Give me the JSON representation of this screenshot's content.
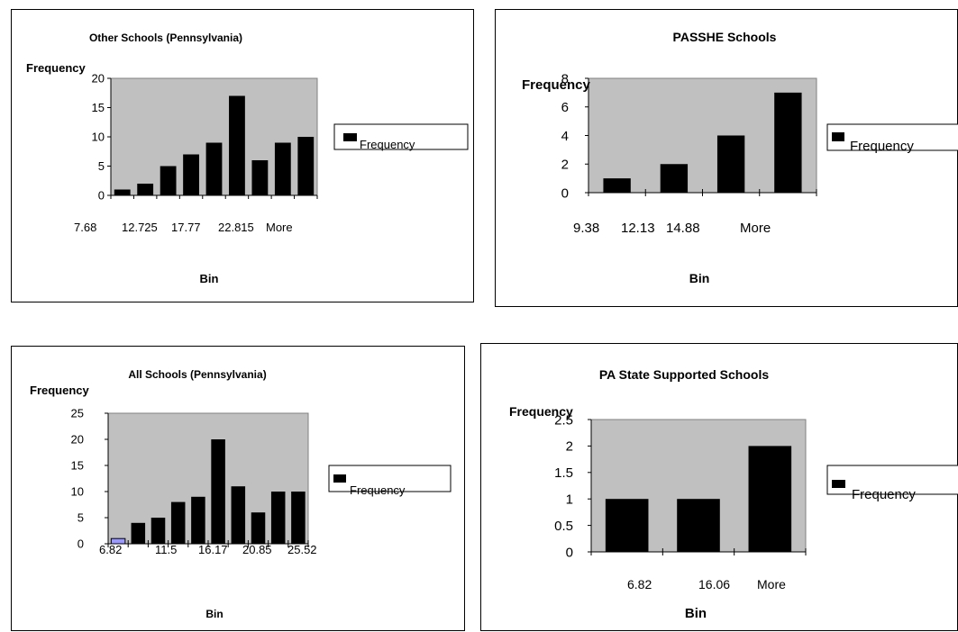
{
  "colors": {
    "plot_bg": "#c0c0c0",
    "bar": "#000000",
    "highlight_bar": "#9999ff",
    "border": "#000000"
  },
  "chart_data": [
    {
      "type": "bar",
      "title": "Other Schools (Pennsylvania)",
      "xlabel": "Bin",
      "ylabel": "Frequency",
      "legend": "Frequency",
      "legend_position": "right",
      "ylim": [
        0,
        20
      ],
      "yticks": [
        "0",
        "5",
        "10",
        "15",
        "20"
      ],
      "x_tick_labels": [
        "7.68",
        "12.725",
        "17.77",
        "22.815",
        "More"
      ],
      "values": [
        1,
        2,
        5,
        7,
        9,
        17,
        6,
        9,
        10
      ]
    },
    {
      "type": "bar",
      "title": "PASSHE Schools",
      "xlabel": "Bin",
      "ylabel": "Frequency",
      "legend": "Frequency",
      "legend_position": "right",
      "ylim": [
        0,
        8
      ],
      "yticks": [
        "0",
        "2",
        "4",
        "6",
        "8"
      ],
      "x_tick_labels": [
        "9.38",
        "12.13",
        "14.88",
        "More"
      ],
      "values": [
        1,
        2,
        4,
        7
      ]
    },
    {
      "type": "bar",
      "title": "All Schools (Pennsylvania)",
      "xlabel": "Bin",
      "ylabel": "Frequency",
      "legend": "Frequency",
      "legend_position": "right",
      "ylim": [
        0,
        25
      ],
      "yticks": [
        "0",
        "5",
        "10",
        "15",
        "20",
        "25"
      ],
      "x_tick_labels": [
        "6.82",
        "11.5",
        "16.17",
        "20.85",
        "25.52"
      ],
      "values": [
        1,
        4,
        5,
        8,
        9,
        20,
        11,
        6,
        10,
        10
      ]
    },
    {
      "type": "bar",
      "title": "PA State Supported Schools",
      "xlabel": "Bin",
      "ylabel": "Frequency",
      "legend": "Frequency",
      "legend_position": "right",
      "ylim": [
        0,
        2.5
      ],
      "yticks": [
        "0",
        "0.5",
        "1",
        "1.5",
        "2",
        "2.5"
      ],
      "x_tick_labels": [
        "6.82",
        "16.06",
        "More"
      ],
      "values": [
        1,
        1,
        2
      ]
    }
  ]
}
